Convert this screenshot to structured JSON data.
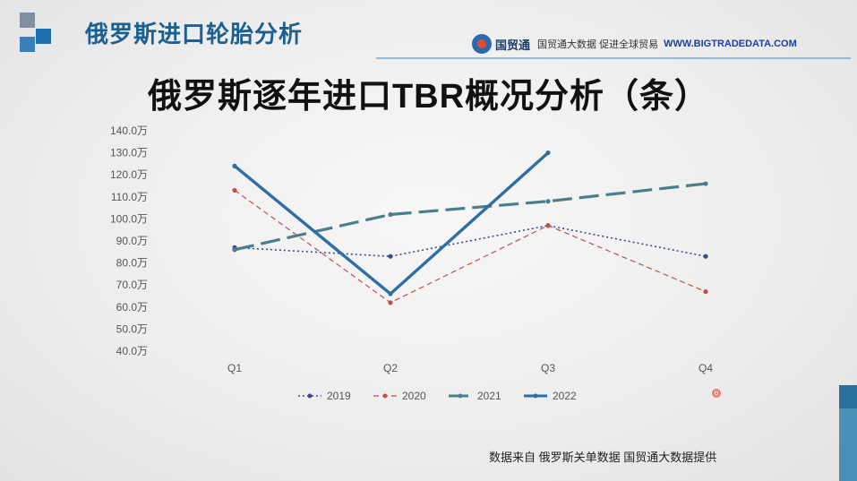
{
  "header": {
    "title": "俄罗斯进口轮胎分析",
    "brand_name": "国贸通",
    "brand_slogan": "国贸通大数据 促进全球贸易",
    "brand_url": "WWW.BIGTRADEDATA.COM"
  },
  "footer_note": "数据来自 俄罗斯关单数据 国贸通大数据提供",
  "chart_data": {
    "type": "line",
    "title": "俄罗斯逐年进口TBR概况分析（条）",
    "categories": [
      "Q1",
      "Q2",
      "Q3",
      "Q4"
    ],
    "ylim": [
      40,
      140
    ],
    "ytick_step": 10,
    "ytick_suffix": "万",
    "legend_position": "bottom",
    "grid": false,
    "series": [
      {
        "name": "2019",
        "values": [
          87,
          83,
          97,
          83
        ],
        "color": "#3a4a8a",
        "style": "dotted"
      },
      {
        "name": "2020",
        "values": [
          113,
          62,
          97,
          67
        ],
        "color": "#c0504d",
        "style": "dashed-thin"
      },
      {
        "name": "2021",
        "values": [
          86,
          102,
          108,
          116
        ],
        "color": "#4a7f8a",
        "style": "dashed-thick"
      },
      {
        "name": "2022",
        "values": [
          124,
          66,
          130,
          null
        ],
        "color": "#2e6ea6",
        "style": "solid-thick"
      }
    ]
  }
}
